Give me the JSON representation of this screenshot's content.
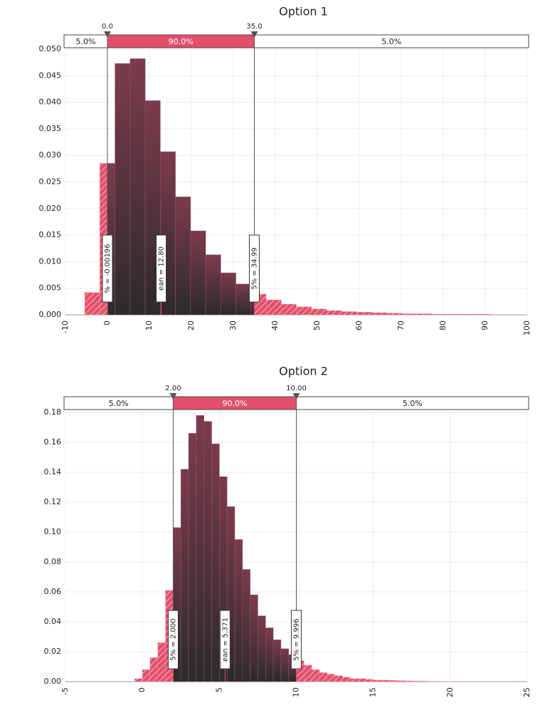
{
  "chart_data": [
    {
      "type": "histogram",
      "title": "Option 1",
      "bins": [
        -5.4,
        -1.8,
        1.8,
        5.4,
        9,
        12.6,
        16.2,
        19.8,
        23.4,
        27,
        30.6,
        34.2,
        37.8,
        41.4,
        45,
        48.6,
        52.2,
        55.8,
        59.4,
        63,
        66.6,
        70.2,
        73.8,
        77.4,
        81,
        84.6,
        88.2,
        91.8,
        95.4,
        99
      ],
      "values": [
        0.0042,
        0.0285,
        0.0473,
        0.0482,
        0.0403,
        0.0307,
        0.0222,
        0.0158,
        0.0113,
        0.0079,
        0.0058,
        0.0039,
        0.0028,
        0.002,
        0.0015,
        0.0011,
        0.0008,
        0.0006,
        0.0005,
        0.0004,
        0.0003,
        0.0002,
        0.0002,
        0.0001,
        0.0001,
        0.0001,
        0.0001,
        0,
        0
      ],
      "color": "#7b3b4c",
      "tail_color": "#e34f6b",
      "xlim": [
        -10,
        100
      ],
      "xticks": [
        -10,
        0,
        10,
        20,
        30,
        40,
        50,
        60,
        70,
        80,
        90,
        100
      ],
      "ylim": [
        0,
        0.05
      ],
      "yticks": [
        {
          "value": 0,
          "label": "0.000"
        },
        0.005,
        {
          "value": 0.01,
          "label": "0.010"
        },
        0.015,
        {
          "value": 0.02,
          "label": "0.020"
        },
        0.025,
        {
          "value": 0.03,
          "label": "0.030"
        },
        0.035,
        {
          "value": 0.04,
          "label": "0.040"
        },
        0.045,
        {
          "value": 0.05,
          "label": "0.050"
        }
      ],
      "grid": true,
      "delimiters": [
        {
          "value": 0,
          "label": "0.0"
        },
        {
          "value": 35,
          "label": "35.0"
        }
      ],
      "region_labels": [
        "5.0%",
        "90.0%",
        "5.0%"
      ],
      "markers": [
        {
          "value": -0.00196,
          "label": "% = -0.00196"
        },
        {
          "value": 12.8,
          "label": "ean = 12.80"
        },
        {
          "value": 34.99,
          "label": "5% = 34.99"
        }
      ]
    },
    {
      "type": "histogram",
      "title": "Option 2",
      "bins": [
        -0.5,
        0,
        0.5,
        1,
        1.5,
        2,
        2.5,
        3,
        3.5,
        4,
        4.5,
        5,
        5.5,
        6,
        6.5,
        7,
        7.5,
        8,
        8.5,
        9,
        9.5,
        10,
        10.5,
        11,
        11.5,
        12,
        12.5,
        13,
        13.5,
        14,
        14.5,
        15,
        15.5,
        16,
        16.5,
        17,
        17.5,
        18,
        18.5,
        19,
        19.5,
        20,
        20.5,
        21,
        21.5,
        22,
        22.5,
        23,
        23.5,
        24
      ],
      "values": [
        0.002,
        0.008,
        0.016,
        0.026,
        0.061,
        0.103,
        0.142,
        0.166,
        0.178,
        0.174,
        0.159,
        0.137,
        0.117,
        0.095,
        0.075,
        0.058,
        0.044,
        0.036,
        0.028,
        0.022,
        0.018,
        0.014,
        0.011,
        0.008,
        0.006,
        0.005,
        0.004,
        0.003,
        0.002,
        0.002,
        0.0015,
        0.001,
        0.001,
        0.0008,
        0.0006,
        0.0005,
        0.0004,
        0.0003,
        0.0002,
        0.0001,
        0.0001,
        0.0001,
        0.0001,
        0.0001,
        0.0001,
        0.0001,
        0.0001,
        0.0001,
        0.0001
      ],
      "color": "#7b3b4c",
      "tail_color": "#e34f6b",
      "xlim": [
        -5,
        25
      ],
      "xticks": [
        -5,
        0,
        5,
        10,
        15,
        20,
        25
      ],
      "ylim": [
        0,
        0.18
      ],
      "yticks": [
        {
          "value": 0,
          "label": "0.00"
        },
        0.02,
        0.04,
        0.06,
        0.08,
        {
          "value": 0.1,
          "label": "0.10"
        },
        0.12,
        0.14,
        0.16,
        0.18
      ],
      "grid": true,
      "delimiters": [
        {
          "value": 2,
          "label": "2.00"
        },
        {
          "value": 10,
          "label": "10.00"
        }
      ],
      "region_labels": [
        "5.0%",
        "90.0%",
        "5.0%"
      ],
      "markers": [
        {
          "value": 2.0,
          "label": "5% = 2.000"
        },
        {
          "value": 5.371,
          "label": "ean = 5.371"
        },
        {
          "value": 9.996,
          "label": "5% = 9.996"
        }
      ]
    }
  ]
}
